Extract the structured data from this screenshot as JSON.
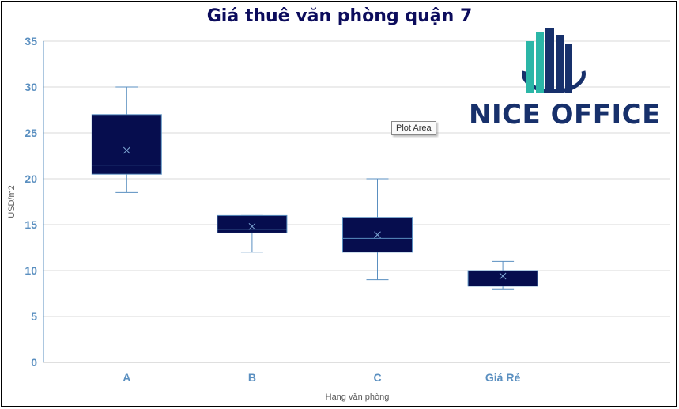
{
  "chart_data": {
    "type": "boxplot",
    "title": "Giá thuê văn phòng quận 7",
    "xlabel": "Hạng văn phòng",
    "ylabel": "USD/m2",
    "ylim": [
      0,
      35
    ],
    "yticks": [
      0,
      5,
      10,
      15,
      20,
      25,
      30,
      35
    ],
    "grid": true,
    "categories": [
      "A",
      "B",
      "C",
      "Giá Rẻ"
    ],
    "boxes": [
      {
        "min": 18.5,
        "q1": 20.5,
        "median": 21.5,
        "q3": 27,
        "max": 30,
        "mean": 23.1
      },
      {
        "min": 12,
        "q1": 14.1,
        "median": 14.5,
        "q3": 16,
        "max": 16,
        "mean": 14.8
      },
      {
        "min": 9,
        "q1": 12,
        "median": 13.5,
        "q3": 15.8,
        "max": 20,
        "mean": 13.9
      },
      {
        "min": 8,
        "q1": 8.3,
        "median": 8.3,
        "q3": 10,
        "max": 11,
        "mean": 9.4
      }
    ],
    "colors": {
      "box": "#060d4e",
      "line": "#5a8fc0",
      "axis_text": "#5a8fc0",
      "grid": "#d9d9d9"
    }
  },
  "tooltip": {
    "text": "Plot Area"
  },
  "logo": {
    "text": "NICE OFFICE",
    "icon": "building-icon"
  }
}
